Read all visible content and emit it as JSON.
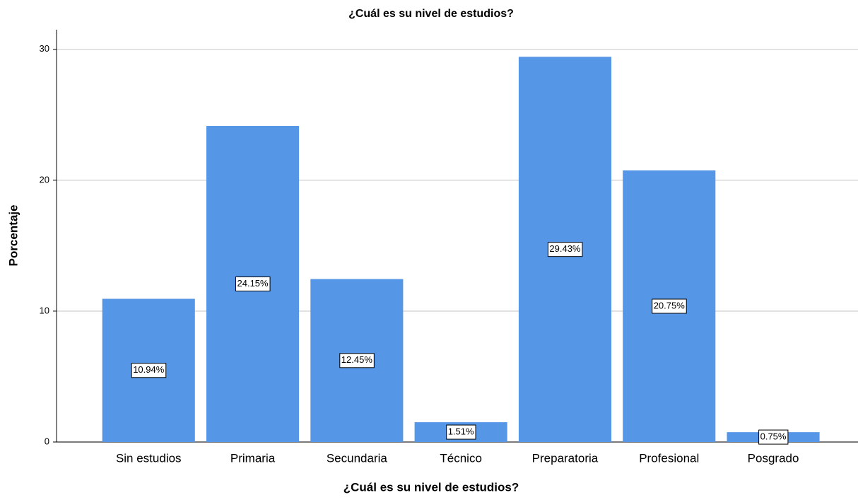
{
  "chart_data": {
    "type": "bar",
    "title": "¿Cuál es su nivel de estudios?",
    "xlabel": "¿Cuál es su nivel de estudios?",
    "ylabel": "Porcentaje",
    "categories": [
      "Sin estudios",
      "Primaria",
      "Secundaria",
      "Técnico",
      "Preparatoria",
      "Profesional",
      "Posgrado"
    ],
    "values": [
      10.94,
      24.15,
      12.45,
      1.51,
      29.43,
      20.75,
      0.75
    ],
    "value_labels": [
      "10.94%",
      "24.15%",
      "12.45%",
      "1.51%",
      "29.43%",
      "20.75%",
      "0.75%"
    ],
    "color": "#5596e6",
    "ylim": [
      0,
      31.5
    ],
    "yticks": [
      0,
      10,
      20,
      30
    ],
    "grid": true
  }
}
